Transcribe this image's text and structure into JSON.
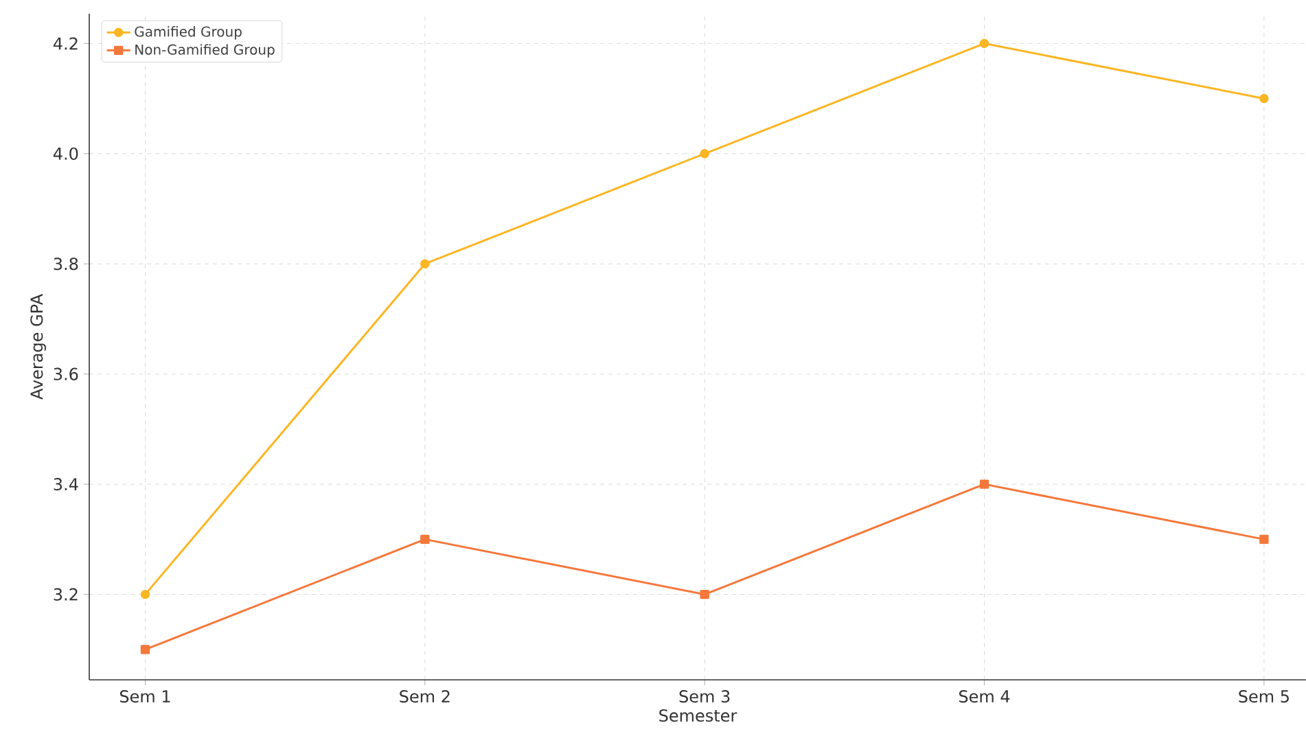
{
  "chart_data": {
    "type": "line",
    "xlabel": "Semester",
    "ylabel": "Average GPA",
    "categories": [
      "Sem 1",
      "Sem 2",
      "Sem 3",
      "Sem 4",
      "Sem 5"
    ],
    "series": [
      {
        "name": "Gamified Group",
        "color": "#fbb623",
        "marker": "circle",
        "values": [
          3.2,
          3.8,
          4.0,
          4.2,
          4.1
        ]
      },
      {
        "name": "Non-Gamified Group",
        "color": "#f5773a",
        "marker": "square",
        "values": [
          3.1,
          3.3,
          3.2,
          3.4,
          3.3
        ]
      }
    ],
    "ylim": [
      3.045,
      4.254
    ],
    "yticks": [
      3.2,
      3.4,
      3.6,
      3.8,
      {
        "value": 4.0,
        "label": "4.0"
      },
      4.2
    ],
    "grid": true,
    "legend": "top left",
    "line_style": "solid"
  }
}
